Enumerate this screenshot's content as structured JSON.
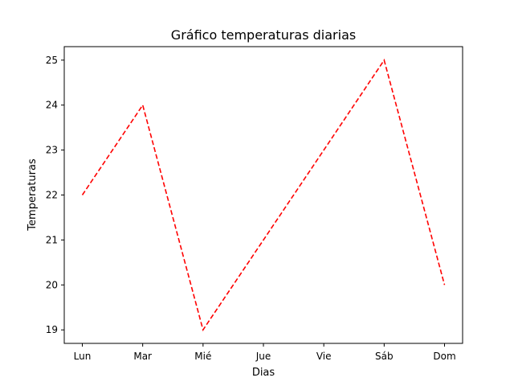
{
  "chart_data": {
    "type": "line",
    "title": "Gráfico temperaturas diarias",
    "xlabel": "Dias",
    "ylabel": "Temperaturas",
    "categories": [
      "Lun",
      "Mar",
      "Mié",
      "Jue",
      "Vie",
      "Sáb",
      "Dom"
    ],
    "series": [
      {
        "values": [
          22,
          24,
          19,
          21,
          23,
          25,
          20
        ],
        "color": "#ff0000",
        "line_style": "dashed"
      }
    ],
    "yticks": [
      19,
      20,
      21,
      22,
      23,
      24,
      25
    ],
    "ylim": [
      18.7,
      25.3
    ],
    "grid": false,
    "legend": "none"
  }
}
